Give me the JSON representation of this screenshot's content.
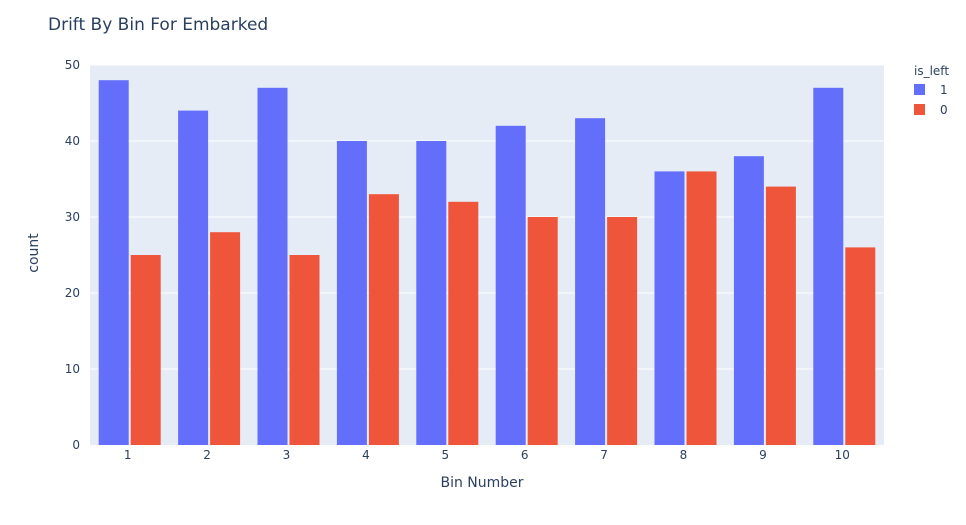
{
  "chart_data": {
    "type": "bar",
    "title": "Drift By Bin For Embarked",
    "xlabel": "Bin Number",
    "ylabel": "count",
    "categories": [
      "1",
      "2",
      "3",
      "4",
      "5",
      "6",
      "7",
      "8",
      "9",
      "10"
    ],
    "ylim": [
      0,
      50
    ],
    "yticks": [
      0,
      10,
      20,
      30,
      40,
      50
    ],
    "grid": true,
    "legend": {
      "title": "is_left",
      "placement": "top-right"
    },
    "series": [
      {
        "name": "1",
        "color": "#636efa",
        "values": [
          48,
          44,
          47,
          40,
          40,
          42,
          43,
          36,
          38,
          47
        ]
      },
      {
        "name": "0",
        "color": "#ef553b",
        "values": [
          25,
          28,
          25,
          33,
          32,
          30,
          30,
          36,
          34,
          26
        ]
      }
    ]
  }
}
